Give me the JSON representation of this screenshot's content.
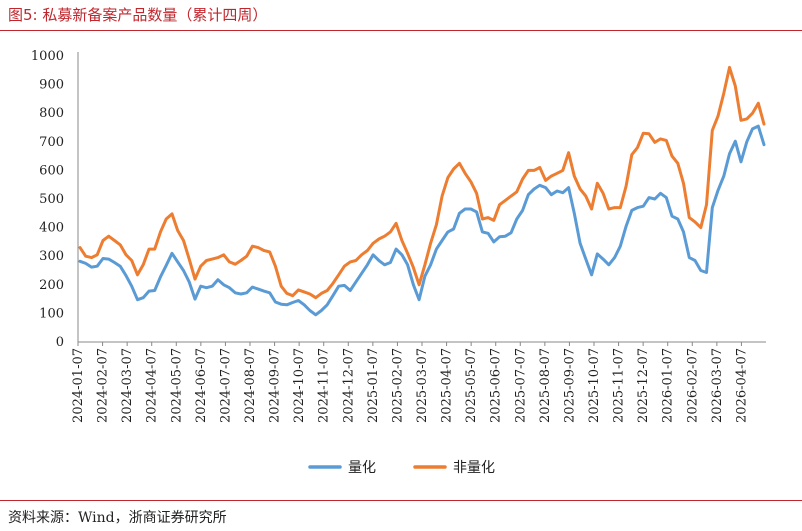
{
  "header": {
    "title": "图5:   私募新备案产品数量（累计四周）"
  },
  "footer": {
    "source": "资料来源：Wind，浙商证券研究所"
  },
  "colors": {
    "accent": "#c0272d",
    "quant": "#5b9bd5",
    "nonquant": "#ed7d31"
  },
  "chart_data": {
    "type": "line",
    "title": "私募新备案产品数量（累计四周）",
    "ylim": [
      0,
      1000
    ],
    "yticks": [
      0,
      100,
      200,
      300,
      400,
      500,
      600,
      700,
      800,
      900,
      1000
    ],
    "start_month": "2024-01",
    "end_month": "2026-04",
    "xtick_labels": [
      "2024-01-07",
      "2024-02-07",
      "2024-03-07",
      "2024-04-07",
      "2024-05-07",
      "2024-06-07",
      "2024-07-07",
      "2024-08-07",
      "2024-09-07",
      "2024-10-07",
      "2024-11-07",
      "2024-12-07",
      "2025-01-07",
      "2025-02-07",
      "2025-03-07",
      "2025-04-07",
      "2025-05-07",
      "2025-06-07",
      "2025-07-07",
      "2025-08-07",
      "2025-09-07",
      "2025-10-07",
      "2025-11-07",
      "2025-12-07",
      "2026-01-07",
      "2026-02-07",
      "2026-03-07",
      "2026-04-07"
    ],
    "grid": false,
    "legend_position": "bottom",
    "series": [
      {
        "name": "量化",
        "color": "#5b9bd5",
        "values": [
          282,
          275,
          262,
          265,
          292,
          290,
          278,
          265,
          232,
          195,
          148,
          155,
          178,
          180,
          228,
          268,
          310,
          280,
          250,
          210,
          150,
          195,
          190,
          195,
          218,
          200,
          190,
          172,
          168,
          172,
          192,
          185,
          178,
          172,
          140,
          132,
          130,
          138,
          145,
          130,
          110,
          95,
          110,
          130,
          162,
          195,
          198,
          180,
          210,
          240,
          270,
          305,
          285,
          270,
          278,
          325,
          305,
          270,
          200,
          148,
          230,
          270,
          325,
          355,
          385,
          395,
          450,
          465,
          465,
          455,
          385,
          380,
          350,
          368,
          370,
          382,
          430,
          460,
          515,
          535,
          548,
          540,
          515,
          528,
          522,
          540,
          450,
          345,
          290,
          235,
          308,
          290,
          270,
          295,
          335,
          405,
          460,
          470,
          475,
          505,
          500,
          520,
          505,
          440,
          430,
          385,
          295,
          285,
          250,
          243,
          470,
          530,
          580,
          658,
          702,
          630,
          700,
          745,
          755,
          690
        ]
      },
      {
        "name": "非量化",
        "color": "#ed7d31",
        "values": [
          330,
          300,
          295,
          305,
          355,
          370,
          355,
          340,
          305,
          285,
          235,
          270,
          325,
          325,
          385,
          430,
          448,
          390,
          355,
          290,
          220,
          265,
          285,
          290,
          295,
          305,
          280,
          272,
          285,
          300,
          335,
          330,
          320,
          315,
          265,
          195,
          170,
          162,
          182,
          175,
          168,
          155,
          170,
          180,
          205,
          235,
          265,
          280,
          285,
          305,
          320,
          345,
          360,
          370,
          385,
          415,
          355,
          310,
          260,
          200,
          270,
          345,
          410,
          510,
          575,
          605,
          625,
          590,
          560,
          520,
          430,
          435,
          425,
          480,
          495,
          510,
          525,
          570,
          600,
          600,
          610,
          565,
          580,
          590,
          600,
          662,
          580,
          535,
          510,
          465,
          555,
          520,
          465,
          470,
          470,
          545,
          655,
          680,
          730,
          728,
          698,
          710,
          705,
          650,
          625,
          555,
          435,
          420,
          400,
          480,
          740,
          790,
          870,
          960,
          895,
          775,
          780,
          800,
          835,
          762
        ]
      }
    ]
  }
}
